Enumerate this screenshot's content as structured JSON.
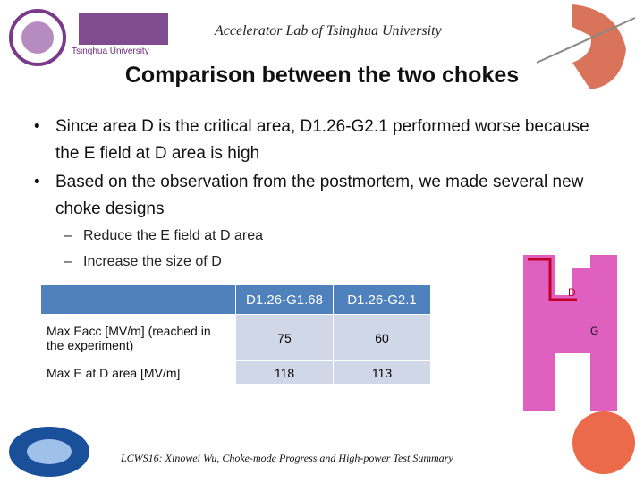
{
  "header": {
    "lab": "Accelerator Lab of Tsinghua University",
    "logo_text": "Tsinghua University"
  },
  "title": "Comparison between the two chokes",
  "bullets": [
    "Since area D is the critical area, D1.26-G2.1 performed worse because the E field at D area is high",
    "Based on the observation from the postmortem, we made several new choke designs"
  ],
  "sub_bullets": [
    "Reduce the E field at D area",
    "Increase the size of D"
  ],
  "table": {
    "columns": [
      "D1.26-G1.68",
      "D1.26-G2.1"
    ],
    "rows": [
      {
        "label": "Max Eacc [MV/m] (reached in the experiment)",
        "values": [
          75,
          60
        ]
      },
      {
        "label": "Max E at D area [MV/m]",
        "values": [
          118,
          113
        ]
      }
    ]
  },
  "diagram": {
    "labels": [
      "D",
      "G"
    ]
  },
  "footer": "LCWS16: Xinowei Wu, Choke-mode Progress and High-power Test Summary"
}
